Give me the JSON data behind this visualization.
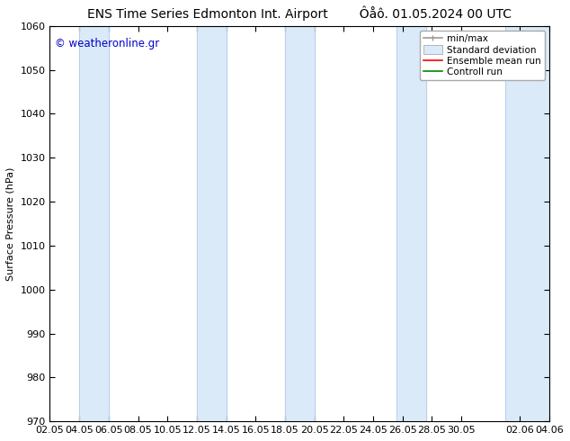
{
  "title_left": "ENS Time Series Edmonton Int. Airport",
  "title_right": "Ôåô. 01.05.2024 00 UTC",
  "ylabel": "Surface Pressure (hPa)",
  "ylim": [
    970,
    1060
  ],
  "yticks": [
    970,
    980,
    990,
    1000,
    1010,
    1020,
    1030,
    1040,
    1050,
    1060
  ],
  "xlabels": [
    "02.05",
    "04.05",
    "06.05",
    "08.05",
    "10.05",
    "12.05",
    "14.05",
    "16.05",
    "18.05",
    "20.05",
    "22.05",
    "24.05",
    "26.05",
    "28.05",
    "30.05",
    "02.06",
    "04.06"
  ],
  "x_positions": [
    0,
    1,
    2,
    3,
    4,
    5,
    6,
    7,
    8,
    9,
    10,
    11,
    12,
    13,
    14,
    16,
    17
  ],
  "shaded_bands": [
    {
      "xmin": 1.0,
      "xmax": 2.0
    },
    {
      "xmin": 5.0,
      "xmax": 6.0
    },
    {
      "xmin": 8.0,
      "xmax": 9.0
    },
    {
      "xmin": 11.8,
      "xmax": 12.8
    },
    {
      "xmin": 15.5,
      "xmax": 17.0
    }
  ],
  "band_color": "#daeaf8",
  "band_edge_color": "#b8d0e8",
  "watermark": "© weatheronline.gr",
  "watermark_color": "#0000cc",
  "legend_labels": [
    "min/max",
    "Standard deviation",
    "Ensemble mean run",
    "Controll run"
  ],
  "legend_colors": [
    "#aaaaaa",
    "#daeaf8",
    "#ff0000",
    "#008800"
  ],
  "background_color": "#ffffff",
  "title_fontsize": 10,
  "axis_label_fontsize": 8,
  "tick_fontsize": 8
}
